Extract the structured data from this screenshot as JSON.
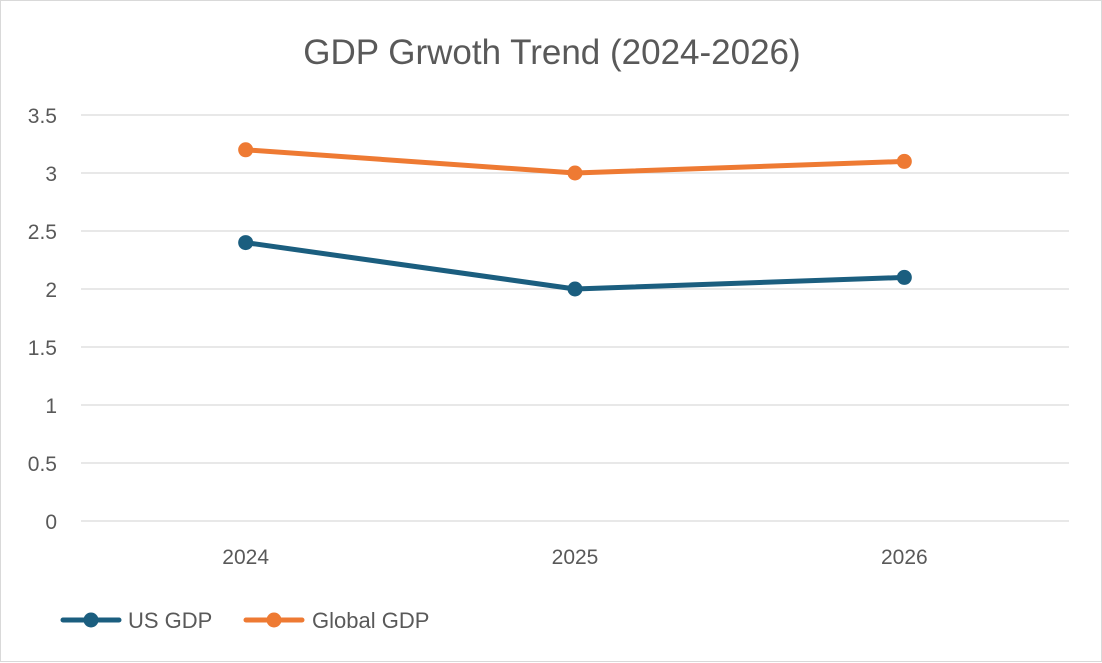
{
  "chart_data": {
    "type": "line",
    "title": "GDP Grwoth Trend (2024-2026)",
    "xlabel": "",
    "ylabel": "",
    "categories": [
      "2024",
      "2025",
      "2026"
    ],
    "ylim": [
      0,
      3.5
    ],
    "yticks": [
      "0",
      "0.5",
      "1",
      "1.5",
      "2",
      "2.5",
      "3",
      "3.5"
    ],
    "grid": true,
    "legend_position": "bottom-left",
    "series": [
      {
        "name": "US GDP",
        "values": [
          2.4,
          2.0,
          2.1
        ],
        "color": "#1b5e7f"
      },
      {
        "name": "Global GDP",
        "values": [
          3.2,
          3.0,
          3.1
        ],
        "color": "#ee7a33"
      }
    ]
  }
}
